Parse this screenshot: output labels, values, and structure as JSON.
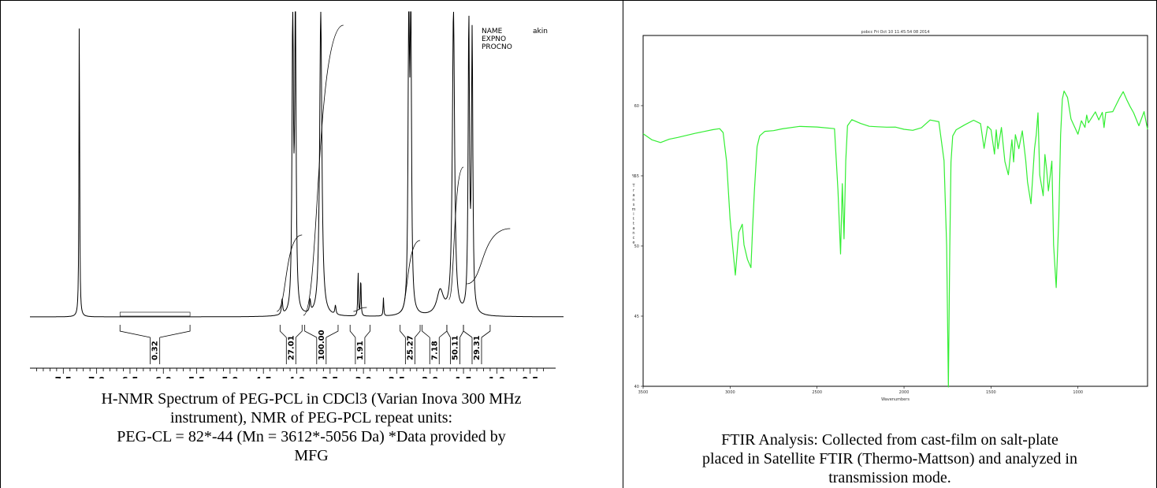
{
  "charts": {
    "nmr": {
      "type": "line",
      "xlabel": "ppm",
      "xlim": [
        8.0,
        0.0
      ],
      "ticks": [
        "7.5",
        "7.0",
        "6.5",
        "6.0",
        "5.5",
        "5.0",
        "4.5",
        "4.0",
        "3.5",
        "3.0",
        "2.5",
        "2.0",
        "1.5",
        "1.0",
        "0.5"
      ],
      "tick_values": [
        7.5,
        7.0,
        6.5,
        6.0,
        5.5,
        5.0,
        4.5,
        4.0,
        3.5,
        3.0,
        2.5,
        2.0,
        1.5,
        1.0,
        0.5
      ],
      "header": [
        "NAME",
        "EXPNO",
        "PROCNO"
      ],
      "header_value": "akin",
      "peaks": [
        {
          "ppm": 7.26,
          "h": 1.0,
          "w": 0.006
        },
        {
          "ppm": 4.06,
          "h": 1.0,
          "w": 0.012
        },
        {
          "ppm": 4.02,
          "h": 1.0,
          "w": 0.012
        },
        {
          "ppm": 3.64,
          "h": 1.0,
          "w": 0.02
        },
        {
          "ppm": 3.08,
          "h": 0.15,
          "w": 0.006
        },
        {
          "ppm": 3.04,
          "h": 0.13,
          "w": 0.006
        },
        {
          "ppm": 2.7,
          "h": 0.06,
          "w": 0.006
        },
        {
          "ppm": 2.32,
          "h": 1.0,
          "w": 0.012
        },
        {
          "ppm": 2.29,
          "h": 1.0,
          "w": 0.012
        },
        {
          "ppm": 1.85,
          "h": 0.08,
          "w": 0.06
        },
        {
          "ppm": 1.65,
          "h": 1.0,
          "w": 0.02
        },
        {
          "ppm": 1.42,
          "h": 0.95,
          "w": 0.012
        },
        {
          "ppm": 1.37,
          "h": 0.9,
          "w": 0.012
        },
        {
          "ppm": 4.22,
          "h": 0.05,
          "w": 0.01
        },
        {
          "ppm": 3.8,
          "h": 0.04,
          "w": 0.01
        },
        {
          "ppm": 3.42,
          "h": 0.03,
          "w": 0.01
        }
      ],
      "integrals": [
        {
          "label": "0.32",
          "from": 6.65,
          "to": 5.6
        },
        {
          "label": "27.01",
          "from": 4.25,
          "to": 3.92
        },
        {
          "label": "100.00",
          "from": 3.88,
          "to": 3.38
        },
        {
          "label": "1.91",
          "from": 3.2,
          "to": 2.9
        },
        {
          "label": "25.27",
          "from": 2.45,
          "to": 2.15
        },
        {
          "label": "7.18",
          "from": 2.12,
          "to": 1.75
        },
        {
          "label": "50.11",
          "from": 1.75,
          "to": 1.5
        },
        {
          "label": "29.31",
          "from": 1.5,
          "to": 1.1
        }
      ]
    },
    "ftir": {
      "type": "line",
      "title": "pobcc Fri Oct 10 11:45:54 08 2014",
      "xlabel": "Wavenumbers",
      "ylabel": "% Transmittance",
      "xlim": [
        3500,
        600
      ],
      "ylim": [
        40,
        65
      ],
      "x_ticks": [
        "3500",
        "3000",
        "2500",
        "2000",
        "1500",
        "1000"
      ],
      "x_tick_values": [
        3500,
        3000,
        2500,
        2000,
        1500,
        1000
      ],
      "y_ticks": [
        "40",
        "45",
        "50",
        "55",
        "60"
      ],
      "y_tick_values": [
        40,
        45,
        50,
        55,
        60
      ],
      "color": "#33ee33",
      "x": [
        3500,
        3450,
        3400,
        3350,
        3300,
        3200,
        3100,
        3060,
        3040,
        3020,
        3000,
        2970,
        2950,
        2930,
        2920,
        2900,
        2880,
        2870,
        2860,
        2850,
        2845,
        2830,
        2800,
        2750,
        2700,
        2600,
        2500,
        2400,
        2380,
        2365,
        2355,
        2345,
        2335,
        2325,
        2300,
        2250,
        2200,
        2150,
        2100,
        2050,
        2000,
        1950,
        1900,
        1850,
        1800,
        1770,
        1755,
        1745,
        1737,
        1730,
        1720,
        1700,
        1650,
        1600,
        1560,
        1540,
        1520,
        1500,
        1480,
        1470,
        1460,
        1440,
        1420,
        1400,
        1380,
        1370,
        1360,
        1340,
        1320,
        1300,
        1290,
        1270,
        1250,
        1240,
        1230,
        1220,
        1200,
        1190,
        1180,
        1170,
        1160,
        1150,
        1140,
        1125,
        1110,
        1100,
        1090,
        1080,
        1060,
        1040,
        1000,
        980,
        960,
        950,
        940,
        900,
        880,
        860,
        850,
        840,
        800,
        760,
        740,
        720,
        700,
        680,
        650,
        620,
        600
      ],
      "y": [
        58.0,
        57.5,
        57.3,
        57.6,
        57.8,
        58.1,
        58.3,
        58.3,
        58.0,
        56.0,
        52.0,
        48.0,
        51.0,
        51.5,
        50.0,
        49.0,
        48.5,
        51.5,
        54.0,
        56.0,
        57.0,
        57.8,
        58.2,
        58.3,
        58.4,
        58.5,
        58.4,
        58.3,
        54.0,
        49.5,
        54.5,
        50.5,
        56.0,
        58.5,
        59.0,
        58.8,
        58.6,
        58.5,
        58.4,
        58.4,
        58.3,
        58.3,
        58.5,
        59.0,
        58.8,
        56.0,
        50.0,
        40.0,
        50.0,
        56.0,
        57.8,
        58.2,
        58.6,
        59.0,
        58.8,
        57.0,
        58.5,
        58.2,
        56.5,
        58.3,
        57.0,
        58.5,
        56.0,
        55.0,
        57.5,
        56.0,
        58.0,
        57.0,
        58.2,
        56.0,
        54.5,
        53.0,
        57.0,
        58.0,
        59.5,
        55.0,
        53.5,
        56.5,
        55.5,
        54.0,
        55.0,
        56.0,
        50.0,
        47.0,
        52.0,
        58.0,
        60.5,
        61.0,
        60.5,
        59.0,
        58.0,
        59.0,
        58.5,
        59.3,
        58.7,
        59.5,
        59.0,
        59.6,
        58.5,
        59.5,
        59.5,
        60.5,
        61.0,
        60.5,
        60.0,
        59.5,
        58.5,
        59.5,
        58.3
      ]
    }
  },
  "captions": {
    "left": [
      "H-NMR Spectrum of PEG-PCL in CDCl3 (Varian Inova 300 MHz",
      "instrument), NMR of PEG-PCL repeat units:",
      "PEG-CL = 82*-44 (Mn = 3612*-5056 Da) *Data provided by",
      "MFG"
    ],
    "right": [
      "FTIR Analysis: Collected from cast-film on salt-plate",
      "placed in Satellite FTIR (Thermo-Mattson) and analyzed in",
      "transmission mode."
    ]
  }
}
